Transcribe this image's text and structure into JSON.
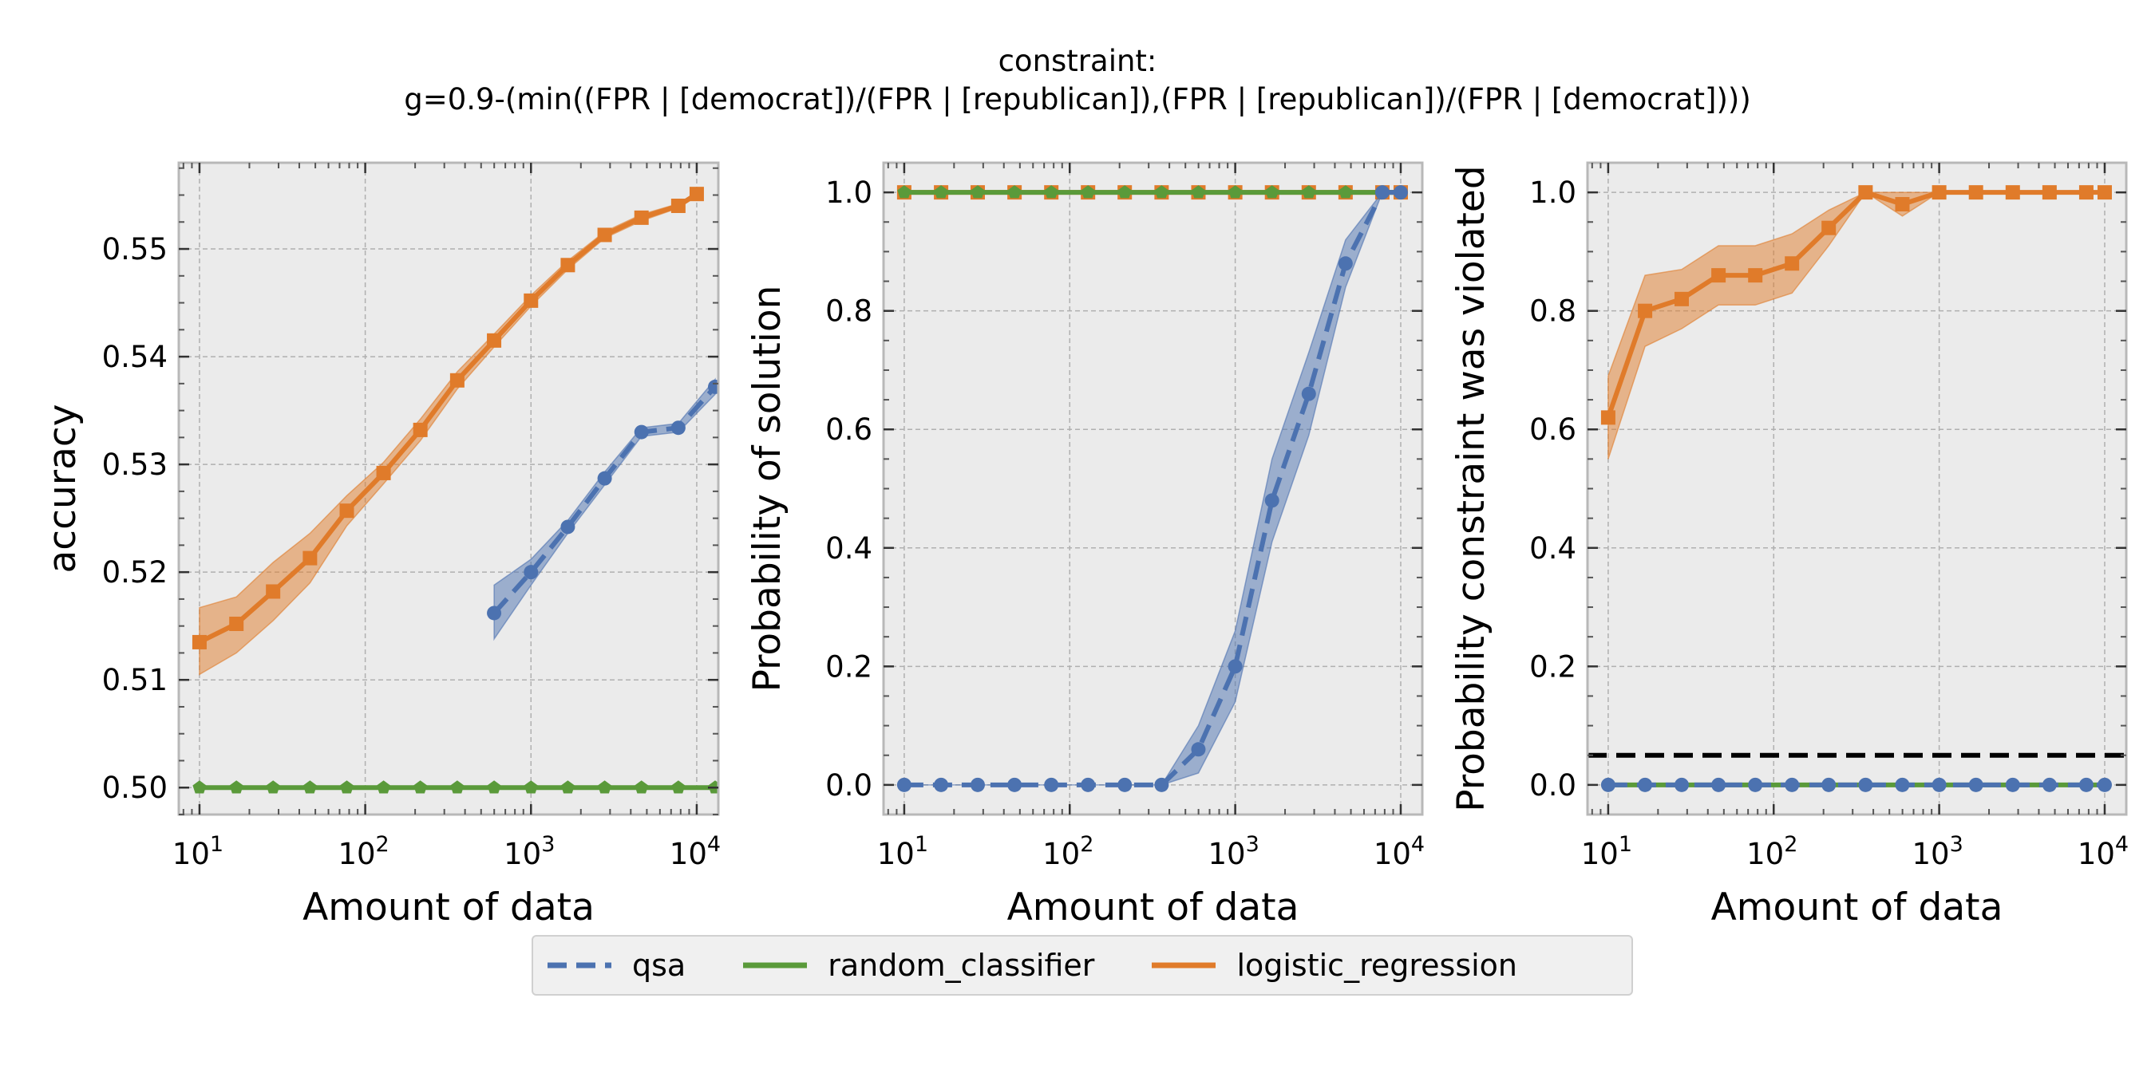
{
  "title": {
    "line1": "constraint:",
    "line2": "g=0.9-(min((FPR | [democrat])/(FPR | [republican]),(FPR | [republican])/(FPR | [democrat])))"
  },
  "colors": {
    "qsa": "#4c72b0",
    "random_classifier": "#5a9a3a",
    "logistic_regression": "#e07b2a",
    "panel_bg": "#ebebeb",
    "grid": "#b0b0b0",
    "threshold": "#000000"
  },
  "legend": [
    {
      "key": "qsa",
      "label": "qsa",
      "style": "dashed"
    },
    {
      "key": "random_classifier",
      "label": "random_classifier",
      "style": "solid"
    },
    {
      "key": "logistic_regression",
      "label": "logistic_regression",
      "style": "solid"
    }
  ],
  "chart_data": [
    {
      "type": "line",
      "xscale": "log",
      "xlabel": "Amount of data",
      "ylabel": "accuracy",
      "xlim": [
        7.5,
        13500
      ],
      "ylim": [
        0.4975,
        0.558
      ],
      "xticks": [
        {
          "value": 10,
          "base": "10",
          "exp": "1"
        },
        {
          "value": 100,
          "base": "10",
          "exp": "2"
        },
        {
          "value": 1000,
          "base": "10",
          "exp": "3"
        },
        {
          "value": 10000,
          "base": "10",
          "exp": "4"
        }
      ],
      "yticks": [
        {
          "value": 0.5,
          "label": "0.50"
        },
        {
          "value": 0.51,
          "label": "0.51"
        },
        {
          "value": 0.52,
          "label": "0.52"
        },
        {
          "value": 0.53,
          "label": "0.53"
        },
        {
          "value": 0.54,
          "label": "0.54"
        },
        {
          "value": 0.55,
          "label": "0.55"
        }
      ],
      "series": [
        {
          "name": "logistic_regression",
          "marker": "square",
          "x": [
            10,
            16.7,
            27.8,
            46.4,
            77.4,
            129,
            215,
            359,
            599,
            1000,
            1668,
            2783,
            4642,
            7743,
            10000
          ],
          "y": [
            0.5135,
            0.5152,
            0.5182,
            0.5213,
            0.5257,
            0.5292,
            0.5332,
            0.5378,
            0.5415,
            0.5452,
            0.5485,
            0.5513,
            0.5529,
            0.554,
            0.5551
          ],
          "lower": [
            0.5105,
            0.5125,
            0.5155,
            0.519,
            0.5243,
            0.5282,
            0.5322,
            0.537,
            0.5409,
            0.5447,
            0.5481,
            0.551,
            0.5526,
            0.5538,
            0.5549
          ],
          "upper": [
            0.5167,
            0.5177,
            0.5209,
            0.5236,
            0.5271,
            0.5302,
            0.5342,
            0.5386,
            0.5421,
            0.5457,
            0.5489,
            0.5516,
            0.5532,
            0.5542,
            0.5553
          ]
        },
        {
          "name": "qsa",
          "marker": "circle",
          "dashed": true,
          "x": [
            599,
            1000,
            1668,
            2783,
            4642,
            7743,
            12915
          ],
          "y": [
            0.5162,
            0.52,
            0.5242,
            0.5287,
            0.533,
            0.5334,
            0.5372
          ],
          "lower": [
            0.5138,
            0.5188,
            0.5236,
            0.5281,
            0.5326,
            0.533,
            0.5365
          ],
          "upper": [
            0.5188,
            0.5212,
            0.5248,
            0.5293,
            0.5334,
            0.5338,
            0.5379
          ]
        },
        {
          "name": "random_classifier",
          "marker": "pentagon",
          "x": [
            10,
            16.7,
            27.8,
            46.4,
            77.4,
            129,
            215,
            359,
            599,
            1000,
            1668,
            2783,
            4642,
            7743,
            12915
          ],
          "y": [
            0.5,
            0.5,
            0.5,
            0.5,
            0.5,
            0.5,
            0.5,
            0.5,
            0.5,
            0.5,
            0.5,
            0.5,
            0.5,
            0.5,
            0.5
          ]
        }
      ]
    },
    {
      "type": "line",
      "xscale": "log",
      "xlabel": "Amount of data",
      "ylabel": "Probability of solution",
      "xlim": [
        7.5,
        13500
      ],
      "ylim": [
        -0.05,
        1.05
      ],
      "xticks": [
        {
          "value": 10,
          "base": "10",
          "exp": "1"
        },
        {
          "value": 100,
          "base": "10",
          "exp": "2"
        },
        {
          "value": 1000,
          "base": "10",
          "exp": "3"
        },
        {
          "value": 10000,
          "base": "10",
          "exp": "4"
        }
      ],
      "yticks": [
        {
          "value": 0.0,
          "label": "0.0"
        },
        {
          "value": 0.2,
          "label": "0.2"
        },
        {
          "value": 0.4,
          "label": "0.4"
        },
        {
          "value": 0.6,
          "label": "0.6"
        },
        {
          "value": 0.8,
          "label": "0.8"
        },
        {
          "value": 1.0,
          "label": "1.0"
        }
      ],
      "series": [
        {
          "name": "logistic_regression",
          "marker": "square",
          "x": [
            10,
            16.7,
            27.8,
            46.4,
            77.4,
            129,
            215,
            359,
            599,
            1000,
            1668,
            2783,
            4642,
            7743,
            10000
          ],
          "y": [
            1,
            1,
            1,
            1,
            1,
            1,
            1,
            1,
            1,
            1,
            1,
            1,
            1,
            1,
            1
          ]
        },
        {
          "name": "random_classifier",
          "marker": "pentagon",
          "x": [
            10,
            16.7,
            27.8,
            46.4,
            77.4,
            129,
            215,
            359,
            599,
            1000,
            1668,
            2783,
            4642,
            7743,
            10000
          ],
          "y": [
            1,
            1,
            1,
            1,
            1,
            1,
            1,
            1,
            1,
            1,
            1,
            1,
            1,
            1,
            1
          ]
        },
        {
          "name": "qsa",
          "marker": "circle",
          "dashed": true,
          "x": [
            10,
            16.7,
            27.8,
            46.4,
            77.4,
            129,
            215,
            359,
            599,
            1000,
            1668,
            2783,
            4642,
            7743,
            10000
          ],
          "y": [
            0,
            0,
            0,
            0,
            0,
            0,
            0,
            0,
            0.06,
            0.2,
            0.48,
            0.66,
            0.88,
            1.0,
            1.0
          ],
          "lower": [
            0,
            0,
            0,
            0,
            0,
            0,
            0,
            0,
            0.02,
            0.14,
            0.41,
            0.59,
            0.84,
            1.0,
            1.0
          ],
          "upper": [
            0,
            0,
            0,
            0,
            0,
            0,
            0,
            0,
            0.1,
            0.26,
            0.55,
            0.73,
            0.92,
            1.0,
            1.0
          ]
        }
      ]
    },
    {
      "type": "line",
      "xscale": "log",
      "xlabel": "Amount of data",
      "ylabel": "Probability constraint was violated",
      "xlim": [
        7.5,
        13500
      ],
      "ylim": [
        -0.05,
        1.05
      ],
      "threshold": 0.05,
      "xticks": [
        {
          "value": 10,
          "base": "10",
          "exp": "1"
        },
        {
          "value": 100,
          "base": "10",
          "exp": "2"
        },
        {
          "value": 1000,
          "base": "10",
          "exp": "3"
        },
        {
          "value": 10000,
          "base": "10",
          "exp": "4"
        }
      ],
      "yticks": [
        {
          "value": 0.0,
          "label": "0.0"
        },
        {
          "value": 0.2,
          "label": "0.2"
        },
        {
          "value": 0.4,
          "label": "0.4"
        },
        {
          "value": 0.6,
          "label": "0.6"
        },
        {
          "value": 0.8,
          "label": "0.8"
        },
        {
          "value": 1.0,
          "label": "1.0"
        }
      ],
      "series": [
        {
          "name": "logistic_regression",
          "marker": "square",
          "x": [
            10,
            16.7,
            27.8,
            46.4,
            77.4,
            129,
            215,
            359,
            599,
            1000,
            1668,
            2783,
            4642,
            7743,
            10000
          ],
          "y": [
            0.62,
            0.8,
            0.82,
            0.86,
            0.86,
            0.88,
            0.94,
            1.0,
            0.98,
            1.0,
            1.0,
            1.0,
            1.0,
            1.0,
            1.0
          ],
          "lower": [
            0.55,
            0.74,
            0.77,
            0.81,
            0.81,
            0.83,
            0.91,
            1.0,
            0.96,
            1.0,
            1.0,
            1.0,
            1.0,
            1.0,
            1.0
          ],
          "upper": [
            0.69,
            0.86,
            0.87,
            0.91,
            0.91,
            0.93,
            0.97,
            1.0,
            1.0,
            1.0,
            1.0,
            1.0,
            1.0,
            1.0,
            1.0
          ]
        },
        {
          "name": "random_classifier",
          "marker": "pentagon",
          "x": [
            10,
            16.7,
            27.8,
            46.4,
            77.4,
            129,
            215,
            359,
            599,
            1000,
            1668,
            2783,
            4642,
            7743,
            10000
          ],
          "y": [
            0,
            0,
            0,
            0,
            0,
            0,
            0,
            0,
            0,
            0,
            0,
            0,
            0,
            0,
            0
          ]
        },
        {
          "name": "qsa",
          "marker": "circle",
          "dashed": true,
          "x": [
            10,
            16.7,
            27.8,
            46.4,
            77.4,
            129,
            215,
            359,
            599,
            1000,
            1668,
            2783,
            4642,
            7743,
            10000
          ],
          "y": [
            0,
            0,
            0,
            0,
            0,
            0,
            0,
            0,
            0,
            0,
            0,
            0,
            0,
            0,
            0
          ]
        }
      ]
    }
  ]
}
